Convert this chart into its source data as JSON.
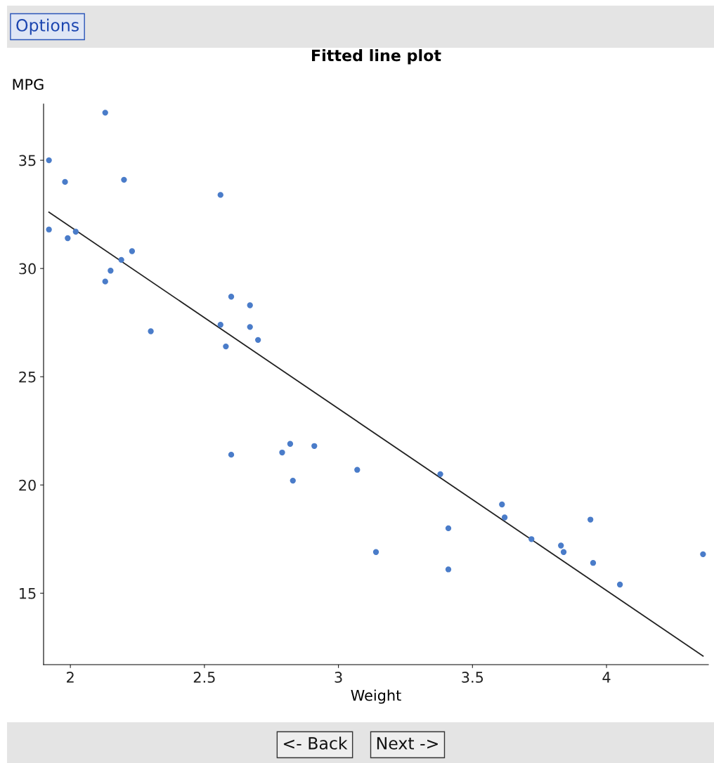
{
  "chart_data": {
    "type": "scatter",
    "title": "Fitted line plot",
    "xlabel": "Weight",
    "ylabel": "MPG",
    "annotations": [
      "Options",
      "<- Back",
      "Next ->"
    ],
    "xlim": [
      1.9,
      4.38
    ],
    "ylim": [
      11.7,
      37.6
    ],
    "xticks": [
      {
        "value": 2,
        "label": "2"
      },
      2.5,
      {
        "value": 3,
        "label": "3"
      },
      3.5,
      {
        "value": 4,
        "label": "4"
      }
    ],
    "yticks": [
      15,
      20,
      25,
      30,
      35
    ],
    "grid": false,
    "marker": "circle",
    "series": [
      {
        "color": "#4a7cc9",
        "x": [
          1.92,
          1.92,
          2.13,
          1.98,
          1.99,
          2.02,
          2.2,
          2.19,
          2.23,
          2.15,
          2.13,
          2.3,
          2.56,
          2.56,
          2.58,
          2.6,
          2.67,
          2.67,
          2.7,
          2.6,
          2.79,
          2.82,
          2.91,
          2.83,
          3.07,
          3.14,
          3.38,
          3.41,
          3.41,
          3.61,
          3.62,
          3.72,
          3.83,
          3.84,
          3.94,
          3.95,
          4.05,
          4.36
        ],
        "values": [
          35.0,
          31.8,
          37.2,
          34.0,
          31.4,
          31.7,
          34.1,
          30.4,
          30.8,
          29.9,
          29.4,
          27.1,
          33.4,
          27.4,
          26.4,
          28.7,
          28.3,
          27.3,
          26.7,
          21.4,
          21.5,
          21.9,
          21.8,
          20.2,
          20.7,
          16.9,
          20.5,
          18.0,
          16.1,
          19.1,
          18.5,
          17.5,
          17.2,
          16.9,
          18.4,
          16.4,
          15.4,
          16.8
        ]
      },
      {
        "type": "line",
        "color": "#222222",
        "marker": "none",
        "x": [
          1.92,
          4.36
        ],
        "values": [
          32.6,
          12.1
        ]
      }
    ]
  }
}
